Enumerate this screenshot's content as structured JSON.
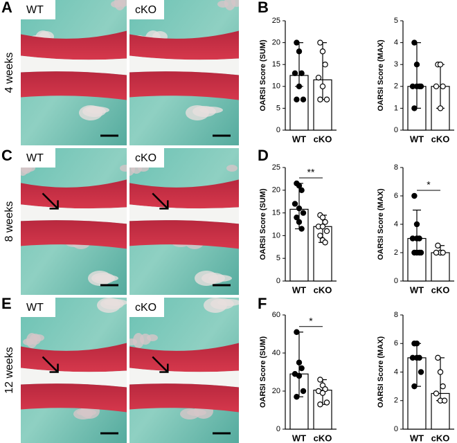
{
  "figure": {
    "panel_letters": [
      "A",
      "B",
      "C",
      "D",
      "E",
      "F"
    ],
    "rows": [
      {
        "label": "4 weeks",
        "images": [
          "WT",
          "cKO"
        ]
      },
      {
        "label": "8 weeks",
        "images": [
          "WT",
          "cKO"
        ]
      },
      {
        "label": "12 weeks",
        "images": [
          "WT",
          "cKO"
        ]
      }
    ]
  },
  "chart_data": [
    {
      "type": "bar",
      "ylabel": "OARSI Score (SUM)",
      "categories": [
        "WT",
        "cKO"
      ],
      "values": [
        12.5,
        11.5
      ],
      "err_low": [
        10,
        7
      ],
      "err_high": [
        20,
        20
      ],
      "points": [
        [
          20,
          18,
          13,
          13,
          10,
          7,
          7
        ],
        [
          20,
          18,
          15,
          12,
          10,
          7,
          7
        ]
      ],
      "ylim": [
        0,
        25
      ],
      "yticks": [
        0,
        5,
        10,
        15,
        20,
        25
      ]
    },
    {
      "type": "bar",
      "ylabel": "OARSI Score (MAX)",
      "categories": [
        "WT",
        "cKO"
      ],
      "values": [
        2,
        2
      ],
      "err_low": [
        1,
        1
      ],
      "err_high": [
        4,
        3
      ],
      "points": [
        [
          4,
          3,
          2,
          2,
          2,
          2,
          1
        ],
        [
          3,
          3,
          2,
          2,
          1
        ]
      ],
      "ylim": [
        0,
        5
      ],
      "yticks": [
        0,
        1,
        2,
        3,
        4,
        5
      ]
    },
    {
      "type": "bar",
      "ylabel": "OARSI Score (SUM)",
      "categories": [
        "WT",
        "cKO"
      ],
      "values": [
        15.8,
        12
      ],
      "err_low": [
        11.5,
        8.5
      ],
      "err_high": [
        21.5,
        14.5
      ],
      "points": [
        [
          21.5,
          21,
          20,
          17,
          16,
          15,
          14,
          13,
          11.5
        ],
        [
          14.5,
          14,
          13,
          12,
          12,
          11,
          10,
          9,
          8.5
        ]
      ],
      "ylim": [
        0,
        25
      ],
      "yticks": [
        0,
        5,
        10,
        15,
        20,
        25
      ],
      "annotation": "**"
    },
    {
      "type": "bar",
      "ylabel": "OARSI Score (MAX)",
      "categories": [
        "WT",
        "cKO"
      ],
      "values": [
        3,
        2
      ],
      "err_low": [
        2,
        2
      ],
      "err_high": [
        5,
        2.5
      ],
      "points": [
        [
          6,
          4,
          3,
          3,
          3,
          2,
          2,
          2,
          2
        ],
        [
          2.5,
          2,
          2,
          2
        ]
      ],
      "ylim": [
        0,
        8
      ],
      "yticks": [
        0,
        2,
        4,
        6,
        8
      ],
      "annotation": "*"
    },
    {
      "type": "bar",
      "ylabel": "OARSI Score (SUM)",
      "categories": [
        "WT",
        "cKO"
      ],
      "values": [
        29,
        20.5
      ],
      "err_low": [
        17,
        13
      ],
      "err_high": [
        51,
        26
      ],
      "points": [
        [
          51,
          35,
          32,
          29,
          28,
          20,
          17
        ],
        [
          26,
          23,
          21,
          20,
          19,
          14,
          13
        ]
      ],
      "ylim": [
        0,
        60
      ],
      "yticks": [
        0,
        20,
        40,
        60
      ],
      "annotation": "*"
    },
    {
      "type": "bar",
      "ylabel": "OARSI Score (MAX)",
      "categories": [
        "WT",
        "cKO"
      ],
      "values": [
        5,
        2.5
      ],
      "err_low": [
        3,
        2
      ],
      "err_high": [
        6,
        5
      ],
      "points": [
        [
          6,
          6,
          5,
          5,
          5,
          4,
          3
        ],
        [
          5,
          4,
          3,
          2.5,
          2,
          2
        ]
      ],
      "ylim": [
        0,
        8
      ],
      "yticks": [
        0,
        2,
        4,
        6,
        8
      ]
    }
  ]
}
